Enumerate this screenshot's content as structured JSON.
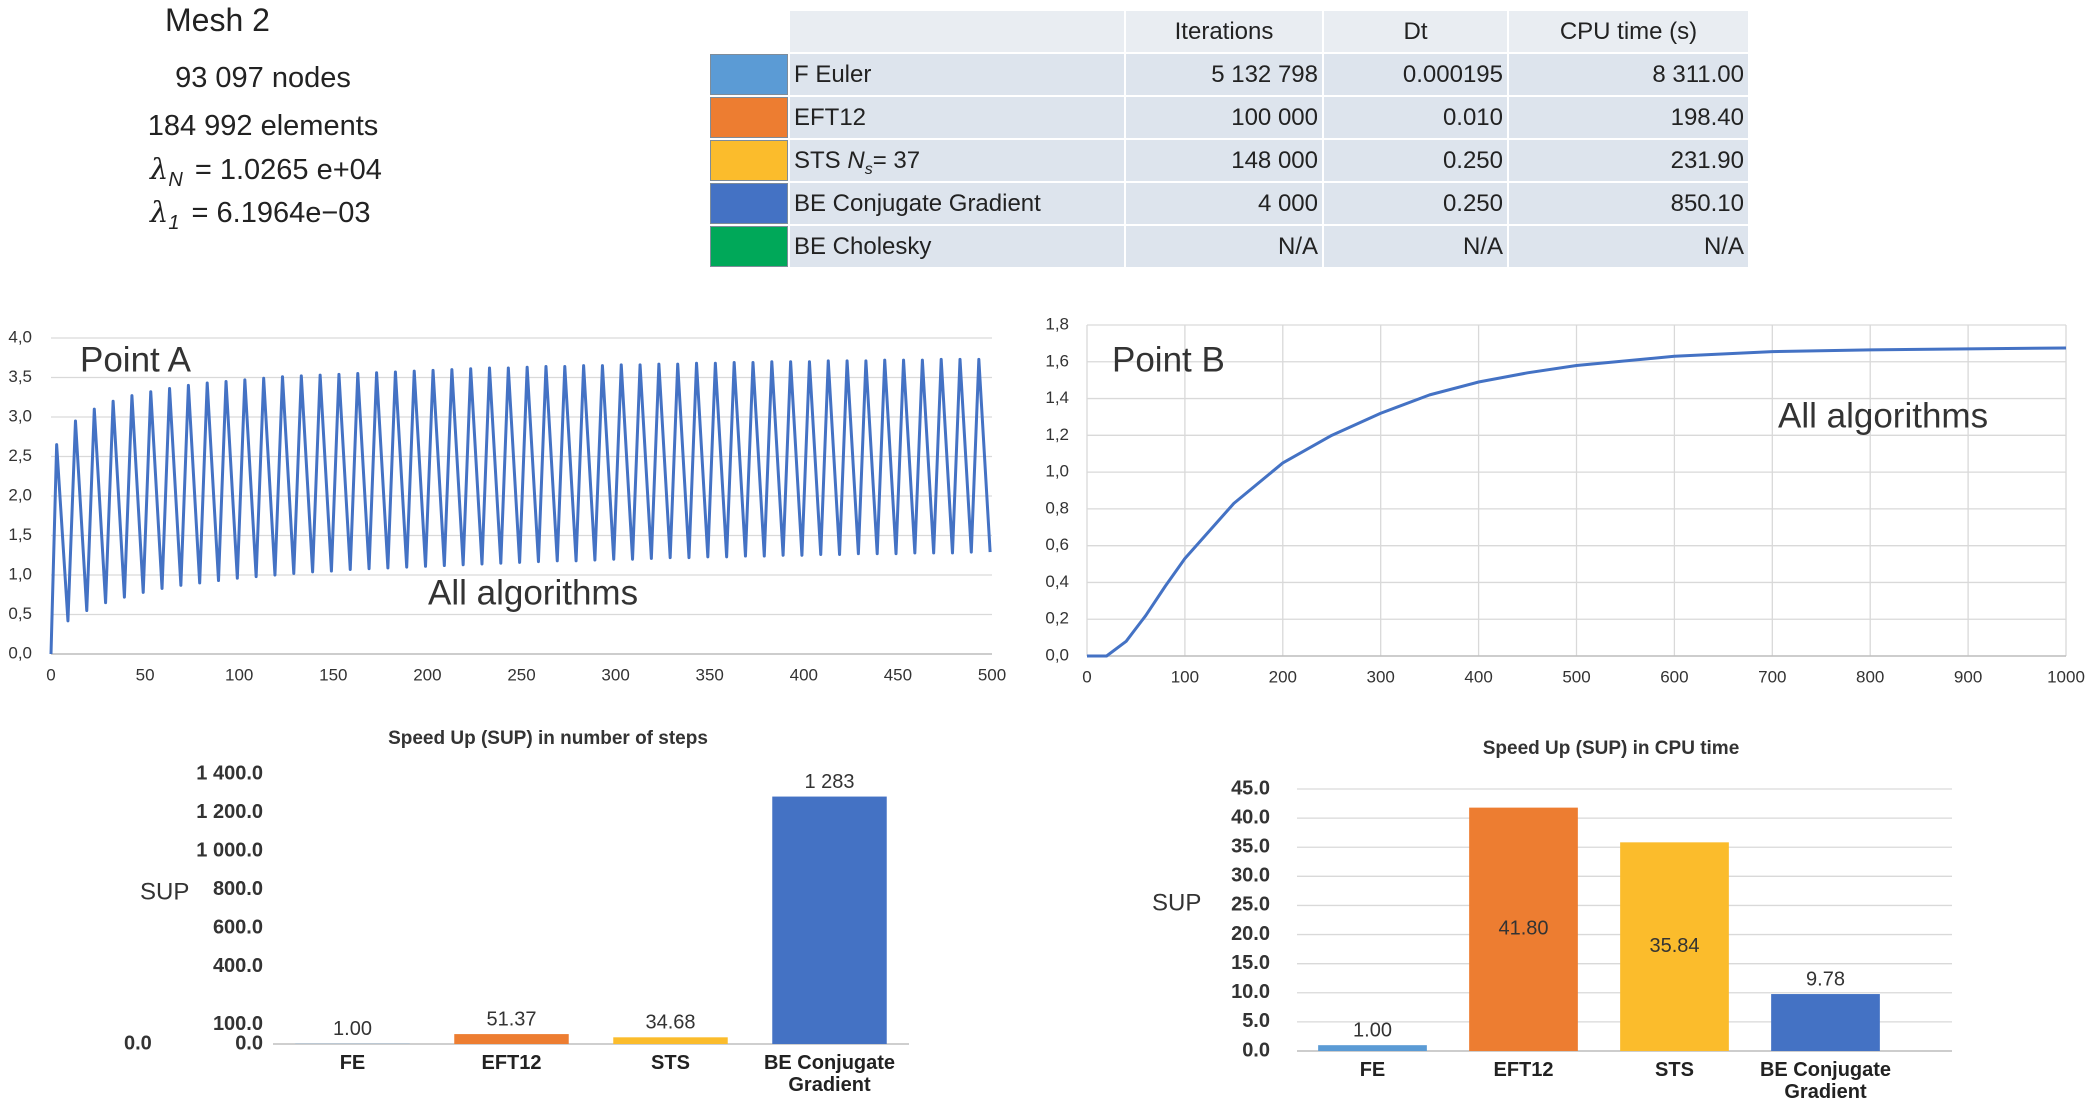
{
  "mesh": {
    "title": "Mesh 2",
    "nodes": "93 097 nodes",
    "elements": "184 992 elements",
    "lambdas": [
      {
        "symbol": "λ",
        "sub": "N",
        "text": "= 1.0265 e+04"
      },
      {
        "symbol": "λ",
        "sub": "1",
        "text": "= 6.1964e−03"
      }
    ]
  },
  "table": {
    "columns": [
      "Iterations",
      "Dt",
      "CPU time (s)"
    ],
    "rows": [
      {
        "name": "F Euler",
        "color": "#5b9bd5",
        "cells": [
          "5 132 798",
          "0.000195",
          "8 311.00"
        ]
      },
      {
        "name": "EFT12",
        "color": "#ed7d31",
        "cells": [
          "100 000",
          "0.010",
          "198.40"
        ]
      },
      {
        "name_parts": [
          "STS ",
          "N",
          "s",
          "= 37"
        ],
        "color": "#fbbc2c",
        "cells": [
          "148 000",
          "0.250",
          "231.90"
        ]
      },
      {
        "name": "BE Conjugate Gradient",
        "color": "#4472c4",
        "cells": [
          "4 000",
          "0.250",
          "850.10"
        ]
      },
      {
        "name": "BE Cholesky",
        "color": "#00a859",
        "cells": [
          "N/A",
          "N/A",
          "N/A"
        ]
      }
    ]
  },
  "chart_data": [
    {
      "type": "line",
      "annotations": [
        "Point A",
        "All algorithms"
      ],
      "color": "#4472c4",
      "grid": "y",
      "xlim": [
        0,
        500
      ],
      "xticks": [
        0,
        50,
        100,
        150,
        200,
        250,
        300,
        350,
        400,
        450,
        500
      ],
      "ylim": [
        0,
        4
      ],
      "yticks": [
        {
          "value": 0,
          "label": "0,0"
        },
        {
          "value": 0.5,
          "label": "0,5"
        },
        {
          "value": 1,
          "label": "1,0"
        },
        {
          "value": 1.5,
          "label": "1,5"
        },
        {
          "value": 2,
          "label": "2,0"
        },
        {
          "value": 2.5,
          "label": "2,5"
        },
        {
          "value": 3,
          "label": "3,0"
        },
        {
          "value": 3.5,
          "label": "3,5"
        },
        {
          "value": 4,
          "label": "4,0"
        }
      ],
      "x": [
        0,
        3,
        9,
        13,
        19,
        23,
        29,
        33,
        39,
        43,
        49,
        53,
        59,
        63,
        69,
        73,
        79,
        83,
        89,
        93,
        99,
        103,
        109,
        113,
        119,
        123,
        129,
        133,
        139,
        143,
        149,
        153,
        159,
        163,
        169,
        173,
        179,
        183,
        189,
        193,
        199,
        203,
        209,
        213,
        219,
        223,
        229,
        233,
        239,
        243,
        249,
        253,
        259,
        263,
        269,
        273,
        279,
        283,
        289,
        293,
        299,
        303,
        309,
        313,
        319,
        323,
        329,
        333,
        339,
        343,
        349,
        353,
        359,
        363,
        369,
        373,
        379,
        383,
        389,
        393,
        399,
        403,
        409,
        413,
        419,
        423,
        429,
        433,
        439,
        443,
        449,
        453,
        459,
        463,
        469,
        473,
        479,
        483,
        489,
        493,
        499
      ],
      "values": [
        0,
        2.65,
        0.42,
        2.95,
        0.55,
        3.1,
        0.65,
        3.2,
        0.72,
        3.27,
        0.78,
        3.32,
        0.83,
        3.36,
        0.87,
        3.4,
        0.9,
        3.43,
        0.93,
        3.45,
        0.96,
        3.47,
        0.98,
        3.49,
        1.0,
        3.51,
        1.02,
        3.52,
        1.04,
        3.53,
        1.05,
        3.54,
        1.07,
        3.55,
        1.08,
        3.56,
        1.09,
        3.57,
        1.1,
        3.58,
        1.11,
        3.59,
        1.12,
        3.6,
        1.13,
        3.61,
        1.14,
        3.62,
        1.15,
        3.62,
        1.16,
        3.63,
        1.17,
        3.64,
        1.18,
        3.64,
        1.18,
        3.65,
        1.19,
        3.65,
        1.2,
        3.66,
        1.2,
        3.66,
        1.21,
        3.67,
        1.22,
        3.67,
        1.22,
        3.68,
        1.23,
        3.68,
        1.23,
        3.69,
        1.24,
        3.69,
        1.24,
        3.7,
        1.25,
        3.7,
        1.25,
        3.7,
        1.26,
        3.71,
        1.26,
        3.71,
        1.27,
        3.71,
        1.27,
        3.72,
        1.27,
        3.72,
        1.28,
        3.72,
        1.28,
        3.73,
        1.28,
        3.73,
        1.29,
        3.73,
        1.29
      ]
    },
    {
      "type": "line",
      "annotations": [
        "Point B",
        "All algorithms"
      ],
      "color": "#4472c4",
      "grid": "both",
      "xlim": [
        0,
        1000
      ],
      "xticks": [
        0,
        100,
        200,
        300,
        400,
        500,
        600,
        700,
        800,
        900,
        1000
      ],
      "ylim": [
        0,
        1.8
      ],
      "yticks": [
        {
          "value": 0,
          "label": "0,0"
        },
        {
          "value": 0.2,
          "label": "0,2"
        },
        {
          "value": 0.4,
          "label": "0,4"
        },
        {
          "value": 0.6,
          "label": "0,6"
        },
        {
          "value": 0.8,
          "label": "0,8"
        },
        {
          "value": 1,
          "label": "1,0"
        },
        {
          "value": 1.2,
          "label": "1,2"
        },
        {
          "value": 1.4,
          "label": "1,4"
        },
        {
          "value": 1.6,
          "label": "1,6"
        },
        {
          "value": 1.8,
          "label": "1,8"
        }
      ],
      "x": [
        0,
        20,
        40,
        60,
        80,
        100,
        150,
        200,
        250,
        300,
        350,
        400,
        450,
        500,
        600,
        700,
        800,
        900,
        1000
      ],
      "values": [
        0,
        0.0,
        0.08,
        0.22,
        0.38,
        0.53,
        0.83,
        1.05,
        1.2,
        1.32,
        1.42,
        1.49,
        1.54,
        1.58,
        1.63,
        1.655,
        1.665,
        1.67,
        1.675
      ]
    },
    {
      "type": "bar",
      "title": "Speed Up (SUP) in number of steps",
      "y_label": "SUP",
      "annotations": [
        "0.0"
      ],
      "grid": false,
      "categories": [
        "FE",
        "EFT12",
        "STS",
        "BE Conjugate Gradient"
      ],
      "values": [
        1,
        51.37,
        34.68,
        1283
      ],
      "value_labels": [
        "1.00",
        "51.37",
        "34.68",
        "1 283"
      ],
      "colors": [
        "#5b9bd5",
        "#ed7d31",
        "#fbbc2c",
        "#4472c4"
      ],
      "ylim": [
        0,
        1400
      ],
      "yticks": [
        {
          "value": 0,
          "label": "0.0"
        },
        {
          "value": 100,
          "label": "100.0"
        },
        {
          "value": 400,
          "label": "400.0"
        },
        {
          "value": 600,
          "label": "600.0"
        },
        {
          "value": 800,
          "label": "800.0"
        },
        {
          "value": 1000,
          "label": "1 000.0"
        },
        {
          "value": 1200,
          "label": "1 200.0"
        },
        {
          "value": 1400,
          "label": "1 400.0"
        }
      ]
    },
    {
      "type": "bar",
      "title": "Speed Up (SUP) in CPU time",
      "y_label": "SUP",
      "grid": true,
      "categories": [
        "FE",
        "EFT12",
        "STS",
        "BE Conjugate Gradient"
      ],
      "values": [
        1,
        41.8,
        35.84,
        9.78
      ],
      "value_labels": [
        "1.00",
        "41.80",
        "35.84",
        "9.78"
      ],
      "colors": [
        "#5b9bd5",
        "#ed7d31",
        "#fbbc2c",
        "#4472c4"
      ],
      "ylim": [
        0,
        45
      ],
      "yticks": [
        {
          "value": 0,
          "label": "0.0"
        },
        {
          "value": 5,
          "label": "5.0"
        },
        {
          "value": 10,
          "label": "10.0"
        },
        {
          "value": 15,
          "label": "15.0"
        },
        {
          "value": 20,
          "label": "20.0"
        },
        {
          "value": 25,
          "label": "25.0"
        },
        {
          "value": 30,
          "label": "30.0"
        },
        {
          "value": 35,
          "label": "35.0"
        },
        {
          "value": 40,
          "label": "40.0"
        },
        {
          "value": 45,
          "label": "45.0"
        }
      ]
    }
  ]
}
